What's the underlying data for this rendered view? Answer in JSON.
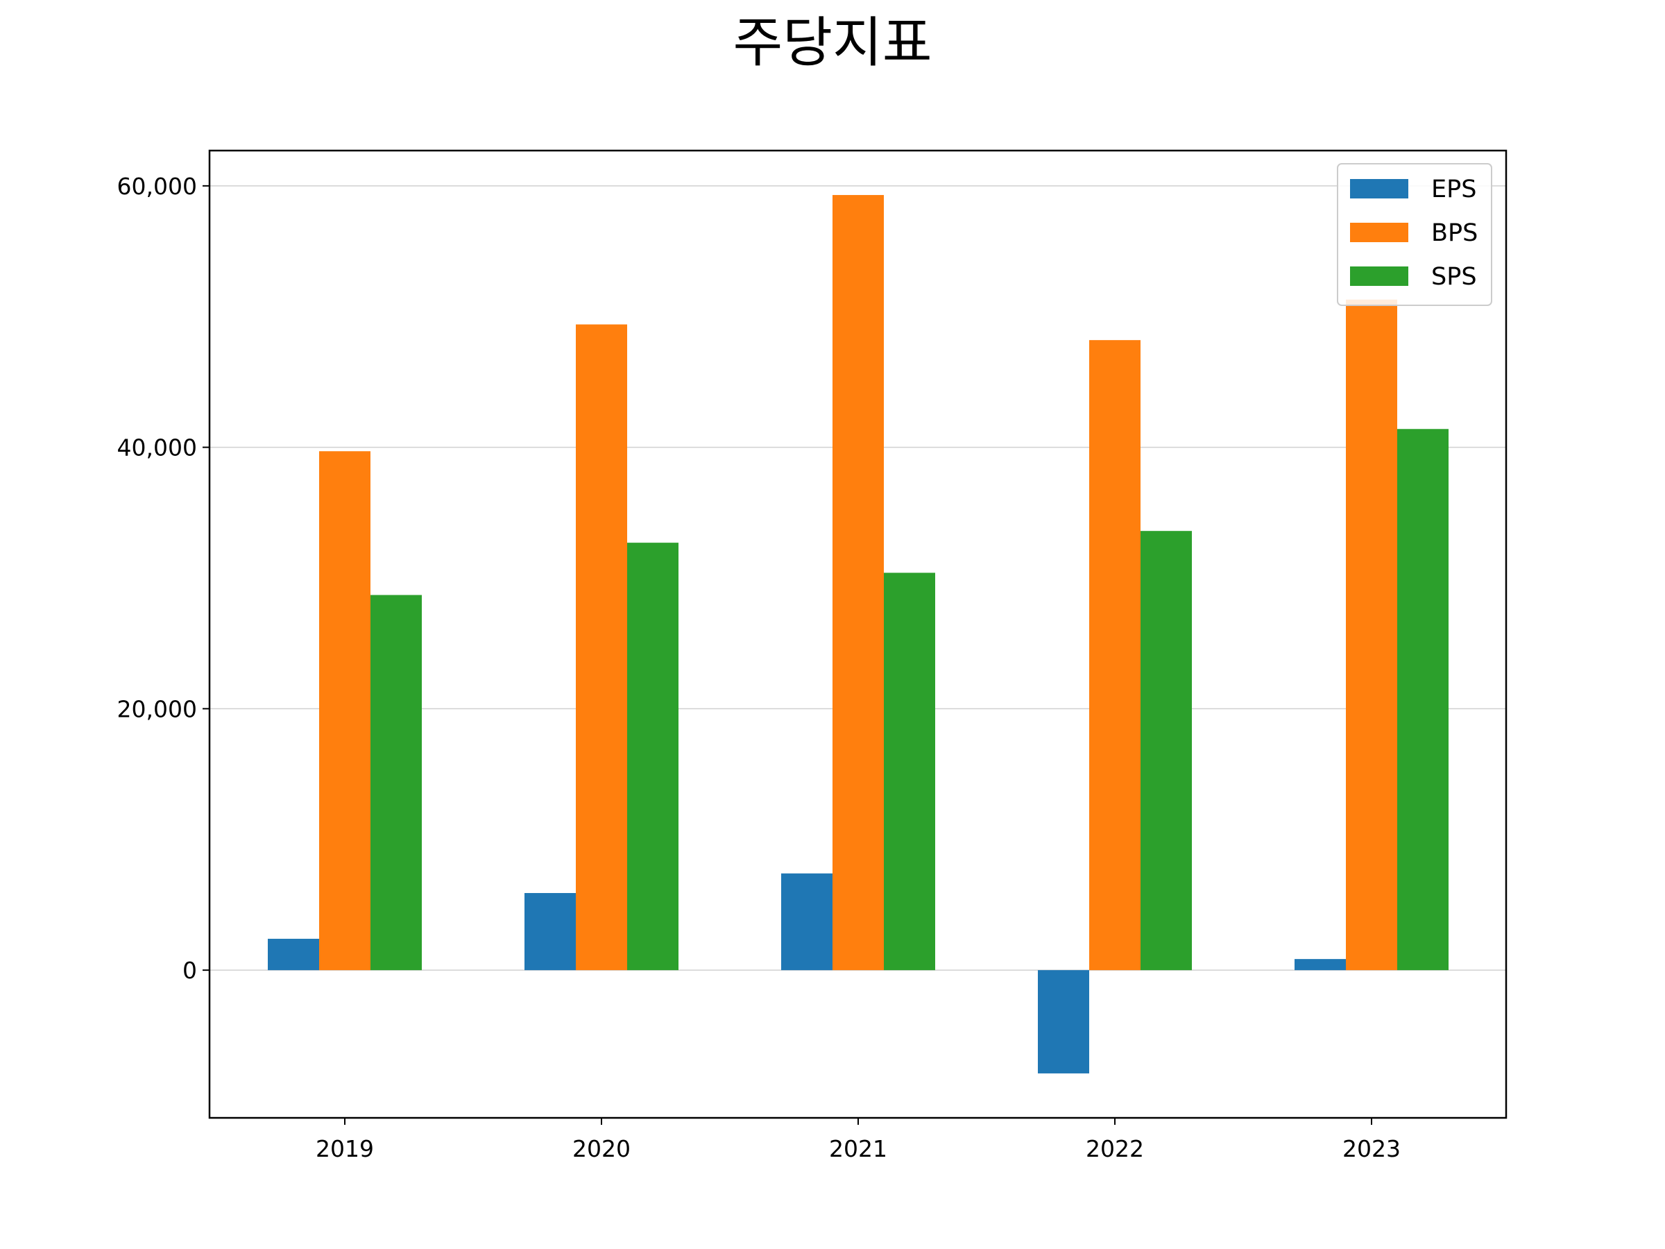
{
  "chart_data": {
    "type": "bar",
    "title": "주당지표",
    "categories": [
      "2019",
      "2020",
      "2021",
      "2022",
      "2023"
    ],
    "series": [
      {
        "name": "EPS",
        "color": "#1f77b4",
        "values": [
          2400,
          5900,
          7400,
          -7900,
          850
        ]
      },
      {
        "name": "BPS",
        "color": "#ff7f0e",
        "values": [
          39700,
          49400,
          59300,
          48200,
          51300
        ]
      },
      {
        "name": "SPS",
        "color": "#2ca02c",
        "values": [
          28700,
          32700,
          30400,
          33600,
          41400
        ]
      }
    ],
    "y_ticks": [
      0,
      20000,
      40000,
      60000
    ],
    "y_tick_labels": [
      "0",
      "20,000",
      "40,000",
      "60,000"
    ],
    "ylim": [
      -11300,
      62700
    ],
    "grid": "horizontal",
    "legend_position": "top-right"
  }
}
